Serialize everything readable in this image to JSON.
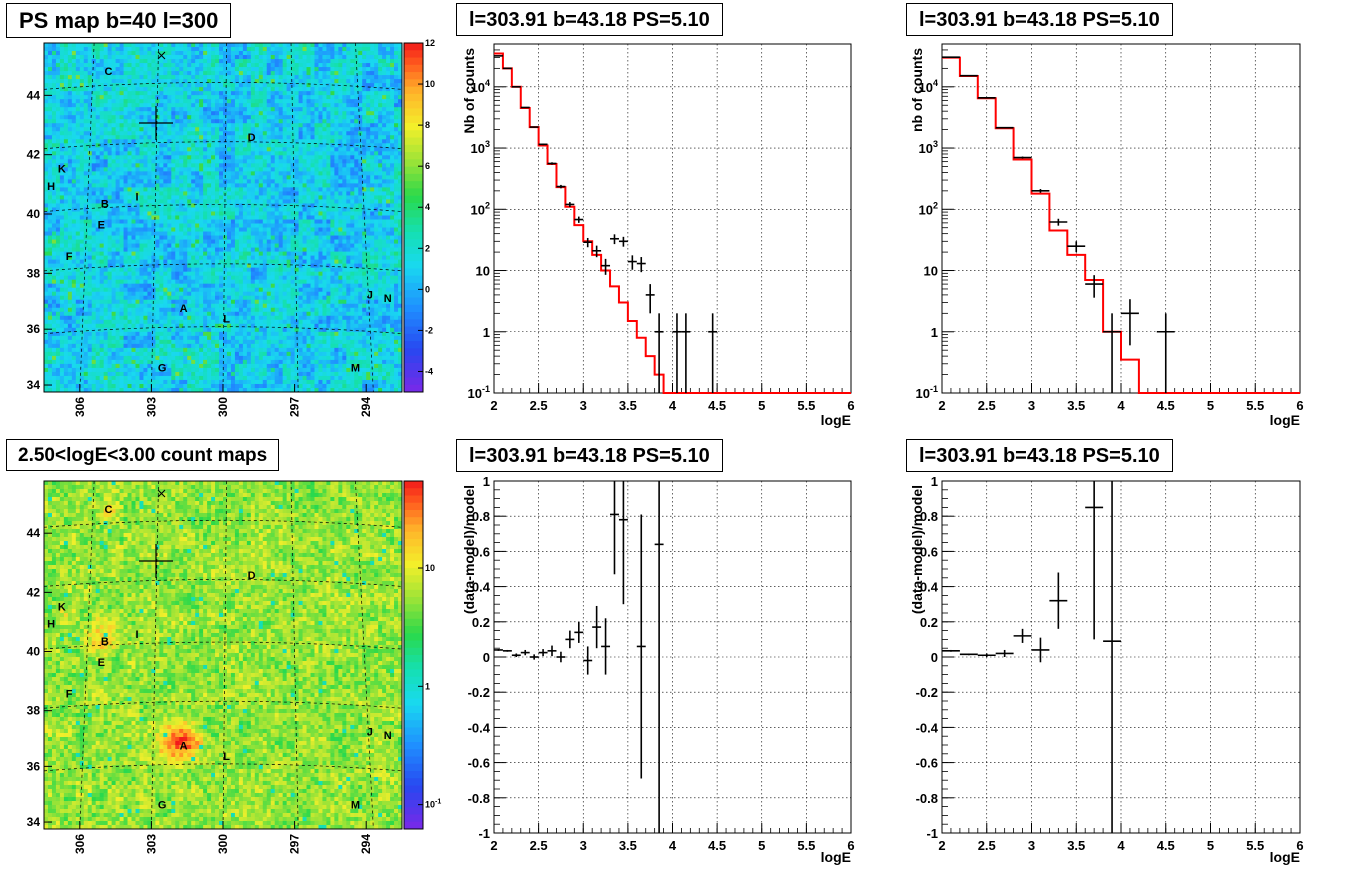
{
  "colors": {
    "data": "#000000",
    "model": "#ff0000",
    "grid": "#000000"
  },
  "map_panels": [
    {
      "title": "PS map b=40 l=300",
      "kind": "ps",
      "colorbar_ticks": [
        "12",
        "10",
        "8",
        "6",
        "4",
        "2",
        "0",
        "-2",
        "-4"
      ],
      "colorbar_range": [
        -5,
        12
      ],
      "b_ticks": [
        "44",
        "42",
        "40",
        "38",
        "36",
        "34"
      ],
      "l_ticks": [
        "306",
        "303",
        "300",
        "297",
        "294"
      ],
      "labels": [
        "C",
        "D",
        "K",
        "H",
        "B",
        "I",
        "E",
        "F",
        "J",
        "N",
        "A",
        "L",
        "G",
        "M"
      ]
    },
    {
      "title": "2.50<logE<3.00 count maps",
      "kind": "count",
      "colorbar_ticks": [
        "10",
        "1",
        "10"
      ],
      "colorbar_sup": "-1",
      "b_ticks": [
        "44",
        "42",
        "40",
        "38",
        "36",
        "34"
      ],
      "l_ticks": [
        "306",
        "303",
        "300",
        "297",
        "294"
      ],
      "labels": [
        "C",
        "D",
        "K",
        "H",
        "B",
        "I",
        "E",
        "F",
        "J",
        "N",
        "A",
        "L",
        "G",
        "M"
      ]
    }
  ],
  "chart_data": [
    {
      "type": "histogram",
      "title": "l=303.91 b=43.18 PS=5.10",
      "xlabel": "logE",
      "ylabel": "Nb of counts",
      "log_y": true,
      "xlim": [
        2,
        6
      ],
      "ylim": [
        0.1,
        50000
      ],
      "x_ticks": [
        "2",
        "2.5",
        "3",
        "3.5",
        "4",
        "4.5",
        "5",
        "5.5",
        "6"
      ],
      "y_ticks": [
        {
          "label": "10",
          "sup": "-1"
        },
        {
          "label": "1",
          "sup": ""
        },
        {
          "label": "10",
          "sup": ""
        },
        {
          "label": "10",
          "sup": "2"
        },
        {
          "label": "10",
          "sup": "3"
        },
        {
          "label": "10",
          "sup": "4"
        }
      ],
      "grid": true,
      "model": {
        "edges": [
          2.0,
          2.1,
          2.2,
          2.3,
          2.4,
          2.5,
          2.6,
          2.7,
          2.8,
          2.9,
          3.0,
          3.1,
          3.2,
          3.3,
          3.4,
          3.5,
          3.6,
          3.7,
          3.8,
          3.9,
          4.0,
          4.1,
          4.2,
          6.0
        ],
        "values": [
          35000,
          20000,
          10000,
          4500,
          2200,
          1100,
          550,
          230,
          110,
          55,
          30,
          18,
          10,
          5.5,
          3,
          1.5,
          0.8,
          0.4,
          0.2,
          0.1,
          0.1,
          0.1,
          0.1
        ]
      },
      "data": [
        {
          "x": 2.05,
          "y": 32000,
          "xerr": 0.05,
          "ylo": 31800,
          "yhi": 32200
        },
        {
          "x": 2.15,
          "y": 20000,
          "xerr": 0.05,
          "ylo": 19850,
          "yhi": 20150
        },
        {
          "x": 2.25,
          "y": 10000,
          "xerr": 0.05,
          "ylo": 9900,
          "yhi": 10100
        },
        {
          "x": 2.35,
          "y": 4600,
          "xerr": 0.05,
          "ylo": 4530,
          "yhi": 4670
        },
        {
          "x": 2.45,
          "y": 2200,
          "xerr": 0.05,
          "ylo": 2150,
          "yhi": 2250
        },
        {
          "x": 2.55,
          "y": 1150,
          "xerr": 0.05,
          "ylo": 1115,
          "yhi": 1185
        },
        {
          "x": 2.65,
          "y": 560,
          "xerr": 0.05,
          "ylo": 535,
          "yhi": 585
        },
        {
          "x": 2.75,
          "y": 235,
          "xerr": 0.05,
          "ylo": 220,
          "yhi": 250
        },
        {
          "x": 2.85,
          "y": 120,
          "xerr": 0.05,
          "ylo": 109,
          "yhi": 131
        },
        {
          "x": 2.95,
          "y": 68,
          "xerr": 0.05,
          "ylo": 60,
          "yhi": 76
        },
        {
          "x": 3.05,
          "y": 29,
          "xerr": 0.05,
          "ylo": 24,
          "yhi": 34
        },
        {
          "x": 3.15,
          "y": 21,
          "xerr": 0.05,
          "ylo": 16.5,
          "yhi": 25.5
        },
        {
          "x": 3.25,
          "y": 12,
          "xerr": 0.05,
          "ylo": 8.5,
          "yhi": 15.5
        },
        {
          "x": 3.35,
          "y": 33,
          "xerr": 0.05,
          "ylo": 27,
          "yhi": 39
        },
        {
          "x": 3.45,
          "y": 30,
          "xerr": 0.05,
          "ylo": 24.5,
          "yhi": 35.5
        },
        {
          "x": 3.55,
          "y": 14,
          "xerr": 0.05,
          "ylo": 10.3,
          "yhi": 17.7
        },
        {
          "x": 3.65,
          "y": 13,
          "xerr": 0.05,
          "ylo": 9.4,
          "yhi": 16.6
        },
        {
          "x": 3.75,
          "y": 4,
          "xerr": 0.05,
          "ylo": 2,
          "yhi": 6
        },
        {
          "x": 3.85,
          "y": 1,
          "xerr": 0.05,
          "ylo": 0.1,
          "yhi": 2
        },
        {
          "x": 4.05,
          "y": 1,
          "xerr": 0.05,
          "ylo": 0.1,
          "yhi": 2
        },
        {
          "x": 4.15,
          "y": 1,
          "xerr": 0.05,
          "ylo": 0.1,
          "yhi": 2
        },
        {
          "x": 4.45,
          "y": 1,
          "xerr": 0.05,
          "ylo": 0.1,
          "yhi": 2
        }
      ]
    },
    {
      "type": "histogram",
      "title": "l=303.91 b=43.18 PS=5.10",
      "xlabel": "logE",
      "ylabel": "nb of counts",
      "log_y": true,
      "xlim": [
        2,
        6
      ],
      "ylim": [
        0.1,
        50000
      ],
      "x_ticks": [
        "2",
        "2.5",
        "3",
        "3.5",
        "4",
        "4.5",
        "5",
        "5.5",
        "6"
      ],
      "y_ticks": [
        {
          "label": "10",
          "sup": "-1"
        },
        {
          "label": "1",
          "sup": ""
        },
        {
          "label": "10",
          "sup": ""
        },
        {
          "label": "10",
          "sup": "2"
        },
        {
          "label": "10",
          "sup": "3"
        },
        {
          "label": "10",
          "sup": "4"
        }
      ],
      "grid": true,
      "model": {
        "edges": [
          2.0,
          2.2,
          2.4,
          2.6,
          2.8,
          3.0,
          3.2,
          3.4,
          3.6,
          3.8,
          4.0,
          4.2,
          6.0
        ],
        "values": [
          30000,
          15000,
          6500,
          2100,
          650,
          180,
          45,
          18,
          7,
          1.0,
          0.35,
          0.1
        ]
      },
      "data": [
        {
          "x": 2.1,
          "y": 30500,
          "xerr": 0.1,
          "ylo": 30300,
          "yhi": 30700
        },
        {
          "x": 2.3,
          "y": 15200,
          "xerr": 0.1,
          "ylo": 15050,
          "yhi": 15350
        },
        {
          "x": 2.5,
          "y": 6600,
          "xerr": 0.1,
          "ylo": 6520,
          "yhi": 6680
        },
        {
          "x": 2.7,
          "y": 2150,
          "xerr": 0.1,
          "ylo": 2100,
          "yhi": 2200
        },
        {
          "x": 2.9,
          "y": 700,
          "xerr": 0.1,
          "ylo": 673,
          "yhi": 727
        },
        {
          "x": 3.1,
          "y": 200,
          "xerr": 0.1,
          "ylo": 186,
          "yhi": 214
        },
        {
          "x": 3.3,
          "y": 62,
          "xerr": 0.1,
          "ylo": 54,
          "yhi": 70
        },
        {
          "x": 3.5,
          "y": 25,
          "xerr": 0.1,
          "ylo": 20,
          "yhi": 30
        },
        {
          "x": 3.7,
          "y": 6,
          "xerr": 0.1,
          "ylo": 3.6,
          "yhi": 8.4
        },
        {
          "x": 3.9,
          "y": 1,
          "xerr": 0.1,
          "ylo": 0.1,
          "yhi": 2
        },
        {
          "x": 4.1,
          "y": 2,
          "xerr": 0.1,
          "ylo": 0.6,
          "yhi": 3.4
        },
        {
          "x": 4.5,
          "y": 1,
          "xerr": 0.1,
          "ylo": 0.1,
          "yhi": 2
        }
      ]
    },
    {
      "type": "scatter",
      "title": "l=303.91 b=43.18 PS=5.10",
      "xlabel": "logE",
      "ylabel": "(data-model)/model",
      "xlim": [
        2,
        6
      ],
      "ylim": [
        -1,
        1
      ],
      "x_ticks": [
        "2",
        "2.5",
        "3",
        "3.5",
        "4",
        "4.5",
        "5",
        "5.5",
        "6"
      ],
      "y_ticks": [
        "-1",
        "-0.8",
        "-0.6",
        "-0.4",
        "-0.2",
        "0",
        "0.2",
        "0.4",
        "0.6",
        "0.8",
        "1"
      ],
      "grid": true,
      "data": [
        {
          "x": 2.05,
          "y": 0.04,
          "xerr": 0.05,
          "ylo": 0.035,
          "yhi": 0.045
        },
        {
          "x": 2.15,
          "y": 0.035,
          "xerr": 0.05,
          "ylo": 0.03,
          "yhi": 0.04
        },
        {
          "x": 2.25,
          "y": 0.01,
          "xerr": 0.05,
          "ylo": 0.0,
          "yhi": 0.02
        },
        {
          "x": 2.35,
          "y": 0.025,
          "xerr": 0.05,
          "ylo": 0.01,
          "yhi": 0.04
        },
        {
          "x": 2.45,
          "y": 0.0,
          "xerr": 0.05,
          "ylo": -0.015,
          "yhi": 0.015
        },
        {
          "x": 2.55,
          "y": 0.025,
          "xerr": 0.05,
          "ylo": 0.005,
          "yhi": 0.045
        },
        {
          "x": 2.65,
          "y": 0.035,
          "xerr": 0.05,
          "ylo": 0.005,
          "yhi": 0.065
        },
        {
          "x": 2.75,
          "y": 0.0,
          "xerr": 0.05,
          "ylo": -0.03,
          "yhi": 0.03
        },
        {
          "x": 2.85,
          "y": 0.1,
          "xerr": 0.05,
          "ylo": 0.05,
          "yhi": 0.15
        },
        {
          "x": 2.95,
          "y": 0.14,
          "xerr": 0.05,
          "ylo": 0.08,
          "yhi": 0.2
        },
        {
          "x": 3.05,
          "y": -0.02,
          "xerr": 0.05,
          "ylo": -0.1,
          "yhi": 0.06
        },
        {
          "x": 3.15,
          "y": 0.17,
          "xerr": 0.05,
          "ylo": 0.05,
          "yhi": 0.29
        },
        {
          "x": 3.25,
          "y": 0.06,
          "xerr": 0.05,
          "ylo": -0.1,
          "yhi": 0.22
        },
        {
          "x": 3.35,
          "y": 0.81,
          "xerr": 0.05,
          "ylo": 0.47,
          "yhi": 1.0
        },
        {
          "x": 3.45,
          "y": 0.78,
          "xerr": 0.05,
          "ylo": 0.3,
          "yhi": 1.0
        },
        {
          "x": 3.65,
          "y": 0.06,
          "xerr": 0.05,
          "ylo": -0.69,
          "yhi": 0.81
        },
        {
          "x": 3.85,
          "y": 0.64,
          "xerr": 0.05,
          "ylo": -1.0,
          "yhi": 1.0
        }
      ]
    },
    {
      "type": "scatter",
      "title": "l=303.91 b=43.18 PS=5.10",
      "xlabel": "logE",
      "ylabel": "(data-model)/model",
      "xlim": [
        2,
        6
      ],
      "ylim": [
        -1,
        1
      ],
      "x_ticks": [
        "2",
        "2.5",
        "3",
        "3.5",
        "4",
        "4.5",
        "5",
        "5.5",
        "6"
      ],
      "y_ticks": [
        "-1",
        "-0.8",
        "-0.6",
        "-0.4",
        "-0.2",
        "0",
        "0.2",
        "0.4",
        "0.6",
        "0.8",
        "1"
      ],
      "grid": true,
      "data": [
        {
          "x": 2.1,
          "y": 0.035,
          "xerr": 0.1,
          "ylo": 0.03,
          "yhi": 0.04
        },
        {
          "x": 2.3,
          "y": 0.015,
          "xerr": 0.1,
          "ylo": 0.01,
          "yhi": 0.02
        },
        {
          "x": 2.5,
          "y": 0.01,
          "xerr": 0.1,
          "ylo": 0.0,
          "yhi": 0.02
        },
        {
          "x": 2.7,
          "y": 0.02,
          "xerr": 0.1,
          "ylo": 0.0,
          "yhi": 0.04
        },
        {
          "x": 2.9,
          "y": 0.12,
          "xerr": 0.1,
          "ylo": 0.08,
          "yhi": 0.16
        },
        {
          "x": 3.1,
          "y": 0.04,
          "xerr": 0.1,
          "ylo": -0.03,
          "yhi": 0.11
        },
        {
          "x": 3.3,
          "y": 0.32,
          "xerr": 0.1,
          "ylo": 0.16,
          "yhi": 0.48
        },
        {
          "x": 3.7,
          "y": 0.85,
          "xerr": 0.1,
          "ylo": 0.1,
          "yhi": 1.0
        },
        {
          "x": 3.9,
          "y": 0.09,
          "xerr": 0.1,
          "ylo": -1.0,
          "yhi": 1.0
        }
      ]
    }
  ]
}
